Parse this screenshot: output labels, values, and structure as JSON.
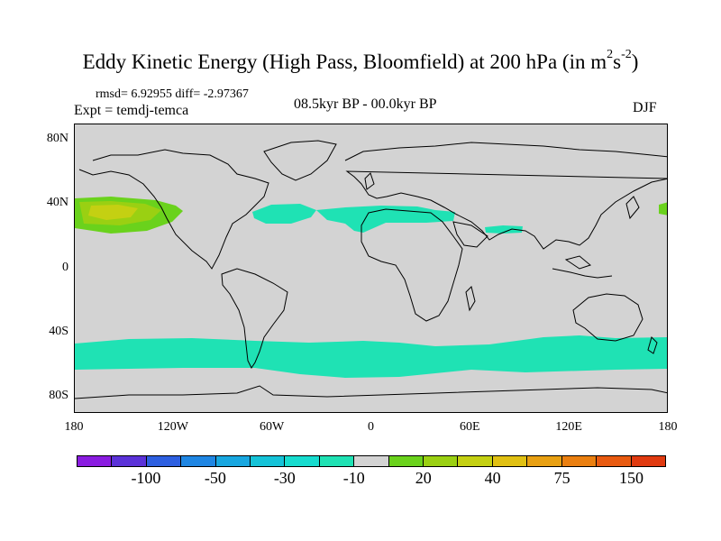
{
  "title": {
    "text": "Eddy Kinetic Energy (High Pass, Bloomfield) at 200 hPa (in m",
    "sup1": "2",
    "mid": "s",
    "sup2": "-2",
    "close": ")"
  },
  "stats": "rmsd= 6.92955 diff= -2.97367",
  "experiment": "Expt = temdj-temca",
  "period": "08.5kyr BP - 00.0kyr BP",
  "season": "DJF",
  "map": {
    "projection": "cylindrical-equidistant",
    "lon_range": [
      -180,
      180
    ],
    "lat_range": [
      -90,
      90
    ],
    "background_color": "#d3d3d3",
    "y_ticks": [
      {
        "lat": 80,
        "label": "80N"
      },
      {
        "lat": 40,
        "label": "40N"
      },
      {
        "lat": 0,
        "label": "0"
      },
      {
        "lat": -40,
        "label": "40S"
      },
      {
        "lat": -80,
        "label": "80S"
      }
    ],
    "x_ticks": [
      {
        "lon": -180,
        "label": "180"
      },
      {
        "lon": -120,
        "label": "120W"
      },
      {
        "lon": -60,
        "label": "60W"
      },
      {
        "lon": 0,
        "label": "0"
      },
      {
        "lon": 60,
        "label": "60E"
      },
      {
        "lon": 120,
        "label": "120E"
      },
      {
        "lon": 180,
        "label": "180"
      }
    ]
  },
  "colorbar": {
    "colors": [
      "#8a1ce0",
      "#5b32d8",
      "#2d5fe0",
      "#1f86e3",
      "#18a7e0",
      "#15c3d8",
      "#17dccf",
      "#1fe2b4",
      "#d3d3d3",
      "#6ad21c",
      "#9ad012",
      "#c4d012",
      "#e0c012",
      "#e8a012",
      "#ea7f10",
      "#e85a10",
      "#e03a10"
    ],
    "labels": [
      "-100",
      "-50",
      "-30",
      "-10",
      "20",
      "40",
      "75",
      "150"
    ]
  }
}
